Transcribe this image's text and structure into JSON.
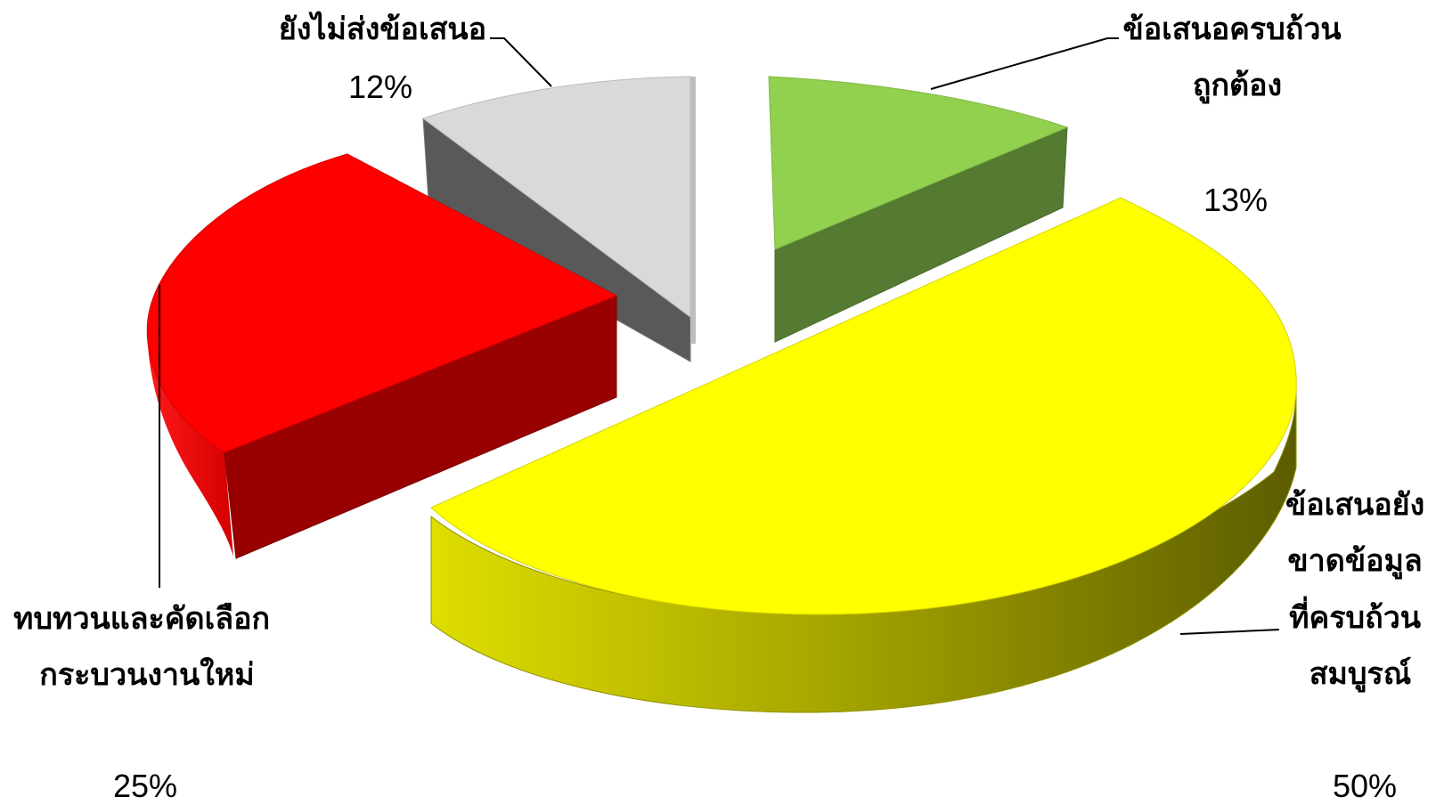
{
  "chart_data": {
    "type": "pie",
    "style": "3d-exploded",
    "slices": [
      {
        "label_lines": [
          "ข้อเสนอครบถ้วน",
          "ถูกต้อง"
        ],
        "value": 13,
        "value_label": "13%",
        "color": "#92d050",
        "side_color": "#557a31"
      },
      {
        "label_lines": [
          "ข้อเสนอยัง",
          "ขาดข้อมูล",
          "ที่ครบถ้วน",
          "สมบูรณ์"
        ],
        "value": 50,
        "value_label": "50%",
        "color": "#ffff00",
        "side_color": "#b3b300"
      },
      {
        "label_lines": [
          "ทบทวนและคัดเลือก",
          "กระบวนงานใหม่"
        ],
        "value": 25,
        "value_label": "25%",
        "color": "#ff0000",
        "side_color": "#990000"
      },
      {
        "label_lines": [
          "ยังไม่ส่งข้อเสนอ"
        ],
        "value": 12,
        "value_label": "12%",
        "color": "#d9d9d9",
        "side_color": "#595959"
      }
    ]
  }
}
